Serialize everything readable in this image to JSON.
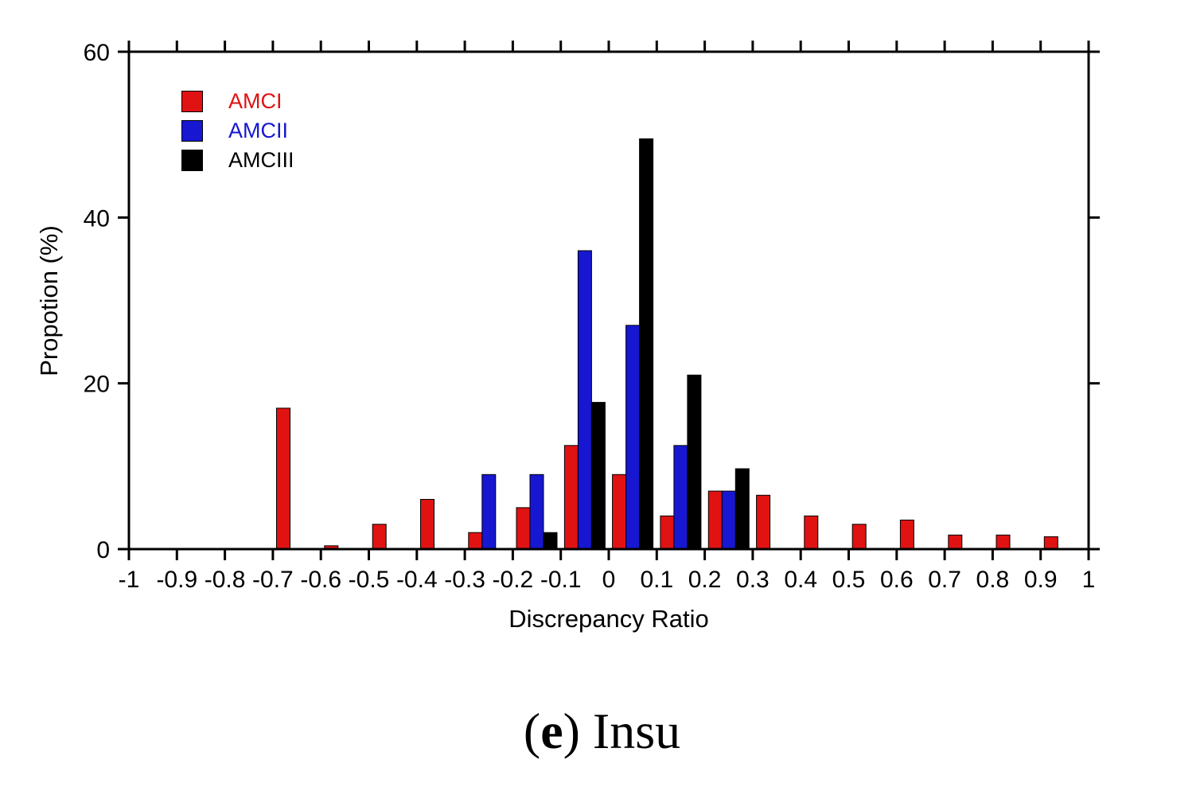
{
  "chart_data": {
    "type": "bar",
    "title": "",
    "xlabel": "Discrepancy Ratio",
    "ylabel": "Propotion (%)",
    "xlim": [
      -1,
      1
    ],
    "ylim": [
      0,
      60
    ],
    "grid": false,
    "legend_position": "top-left",
    "x_tick_values": [
      -1,
      -0.9,
      -0.8,
      -0.7,
      -0.6,
      -0.5,
      -0.4,
      -0.3,
      -0.2,
      -0.1,
      0,
      0.1,
      0.2,
      0.3,
      0.4,
      0.5,
      0.6,
      0.7,
      0.8,
      0.9,
      1
    ],
    "x_tick_labels": [
      "-1",
      "-0.9",
      "-0.8",
      "-0.7",
      "-0.6",
      "-0.5",
      "-0.4",
      "-0.3",
      "-0.2",
      "-0.1",
      "0",
      "0.1",
      "0.2",
      "0.3",
      "0.4",
      "0.5",
      "0.6",
      "0.7",
      "0.8",
      "0.9",
      "1"
    ],
    "y_tick_values": [
      0,
      20,
      40,
      60
    ],
    "y_tick_labels": [
      "0",
      "20",
      "40",
      "60"
    ],
    "bin_centers": [
      -0.95,
      -0.85,
      -0.75,
      -0.65,
      -0.55,
      -0.45,
      -0.35,
      -0.25,
      -0.15,
      -0.05,
      0.05,
      0.15,
      0.25,
      0.35,
      0.45,
      0.55,
      0.65,
      0.75,
      0.85,
      0.95
    ],
    "series": [
      {
        "name": "AMCI",
        "color": "#e01212",
        "values": [
          0,
          0,
          0,
          17,
          0.4,
          3,
          6,
          2,
          5,
          12.5,
          9,
          4,
          7,
          6.5,
          4,
          3,
          3.5,
          1.7,
          1.7,
          1.5
        ]
      },
      {
        "name": "AMCII",
        "color": "#1717d1",
        "values": [
          0,
          0,
          0,
          0,
          0,
          0,
          0,
          9,
          9,
          36,
          27,
          12.5,
          7,
          0,
          0,
          0,
          0,
          0,
          0,
          0
        ]
      },
      {
        "name": "AMCIII",
        "color": "#000000",
        "values": [
          0,
          0,
          0,
          0,
          0,
          0,
          0,
          0,
          2,
          17.7,
          49.5,
          21,
          9.7,
          0,
          0,
          0,
          0,
          0,
          0,
          0
        ]
      }
    ]
  },
  "caption": {
    "prefix": "(",
    "bold": "e",
    "suffix": ") Insu"
  }
}
